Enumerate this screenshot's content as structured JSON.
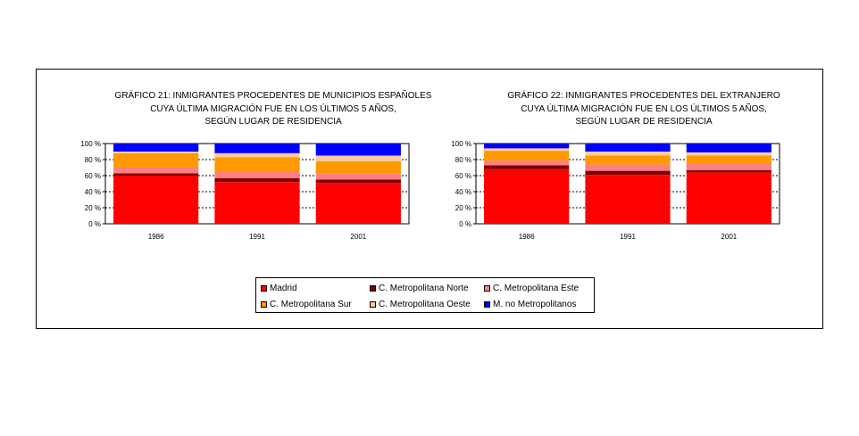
{
  "colors": {
    "Madrid": "#ff0000",
    "C. Metropolitana Norte": "#800000",
    "C. Metropolitana Este": "#ff8080",
    "C. Metropolitana Sur": "#ff9900",
    "C. Metropolitana Oeste": "#ffcc99",
    "M. no Metropolitanos": "#0000ff"
  },
  "legend": {
    "items": [
      "Madrid",
      "C. Metropolitana Norte",
      "C. Metropolitana Este",
      "C. Metropolitana Sur",
      "C. Metropolitana Oeste",
      "M. no Metropolitanos"
    ]
  },
  "chart_data": [
    {
      "type": "bar",
      "stacked": true,
      "title_lines": [
        "GRÁFICO 21: INMIGRANTES PROCEDENTES DE MUNICIPIOS ESPAÑOLES",
        "CUYA ÚLTIMA MIGRACIÓN FUE EN LOS ÚLTIMOS 5 AÑOS,",
        "SEGÚN LUGAR DE RESIDENCIA"
      ],
      "categories": [
        "1986",
        "1991",
        "2001"
      ],
      "yticks": [
        "0 %",
        "20 %",
        "40 %",
        "60 %",
        "80 %",
        "100 %"
      ],
      "ylim": [
        0,
        100
      ],
      "grid": true,
      "series": [
        {
          "name": "Madrid",
          "values": [
            60,
            52,
            51
          ]
        },
        {
          "name": "C. Metropolitana Norte",
          "values": [
            3,
            5,
            4
          ]
        },
        {
          "name": "C. Metropolitana Este",
          "values": [
            7,
            8,
            8
          ]
        },
        {
          "name": "C. Metropolitana Sur",
          "values": [
            18,
            18,
            15
          ]
        },
        {
          "name": "C. Metropolitana Oeste",
          "values": [
            2,
            5,
            7
          ]
        },
        {
          "name": "M. no Metropolitanos",
          "values": [
            10,
            12,
            15
          ]
        }
      ]
    },
    {
      "type": "bar",
      "stacked": true,
      "title_lines": [
        "GRÁFICO 22: INMIGRANTES PROCEDENTES DEL EXTRANJERO",
        "CUYA ÚLTIMA MIGRACIÓN FUE EN LOS ÚLTIMOS 5 AÑOS,",
        "SEGÚN LUGAR DE RESIDENCIA"
      ],
      "categories": [
        "1986",
        "1991",
        "2001"
      ],
      "yticks": [
        "0 %",
        "20 %",
        "40 %",
        "60 %",
        "80 %",
        "100 %"
      ],
      "ylim": [
        0,
        100
      ],
      "grid": true,
      "series": [
        {
          "name": "Madrid",
          "values": [
            68,
            61,
            64
          ]
        },
        {
          "name": "C. Metropolitana Norte",
          "values": [
            5,
            5,
            3
          ]
        },
        {
          "name": "C. Metropolitana Este",
          "values": [
            6,
            8,
            8
          ]
        },
        {
          "name": "C. Metropolitana Sur",
          "values": [
            12,
            11,
            10
          ]
        },
        {
          "name": "C. Metropolitana Oeste",
          "values": [
            3,
            5,
            4
          ]
        },
        {
          "name": "M. no Metropolitanos",
          "values": [
            6,
            10,
            11
          ]
        }
      ]
    }
  ]
}
